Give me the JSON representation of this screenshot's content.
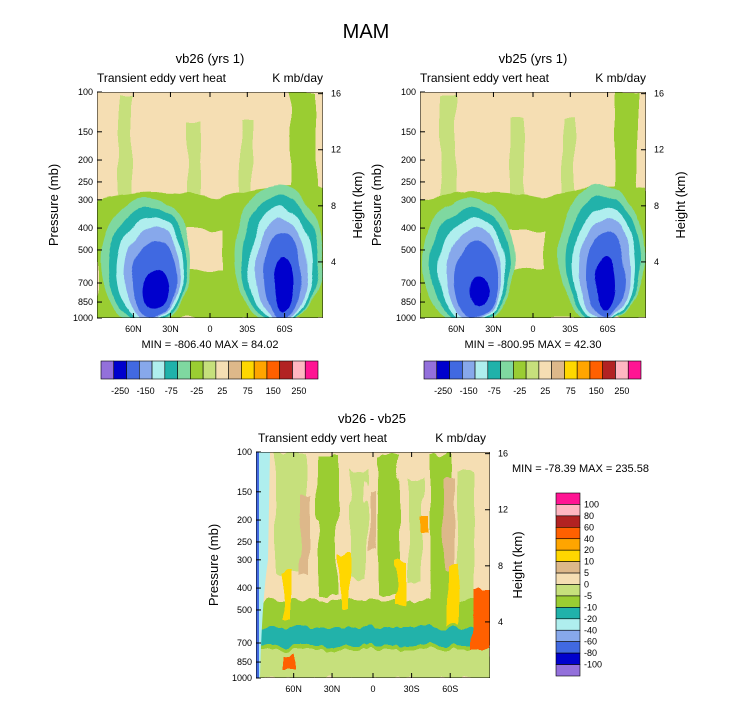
{
  "figure": {
    "title": "MAM"
  },
  "chart_data": [
    {
      "type": "heatmap",
      "title": "vb26 (yrs 1)",
      "subtitle_left": "Transient eddy vert heat",
      "subtitle_right": "K mb/day",
      "ylabel": "Pressure (mb)",
      "ylabel_right": "Height (km)",
      "x_ticks": [
        "60N",
        "30N",
        "0",
        "30S",
        "60S"
      ],
      "y_ticks": [
        "100",
        "150",
        "200",
        "250",
        "300",
        "400",
        "500",
        "700",
        "850",
        "1000"
      ],
      "y_right_ticks": [
        "16",
        "12",
        "8",
        "4"
      ],
      "stats": "MIN = -806.40   MAX = 84.02",
      "colorbar": {
        "labels": [
          "-250",
          "-150",
          "-75",
          "-25",
          "25",
          "75",
          "150",
          "250"
        ],
        "colors": [
          "#9370DB",
          "#0000CD",
          "#4169E1",
          "#87A8EB",
          "#AFEEEE",
          "#20B2AA",
          "#7FD8A0",
          "#9ACD32",
          "#C6E07C",
          "#F5DEB3",
          "#DDB88A",
          "#FFD700",
          "#FFA500",
          "#FF6000",
          "#B22222",
          "#FFB6C1",
          "#FF1493"
        ]
      }
    },
    {
      "type": "heatmap",
      "title": "vb25 (yrs 1)",
      "subtitle_left": "Transient eddy vert heat",
      "subtitle_right": "K mb/day",
      "ylabel": "Pressure (mb)",
      "ylabel_right": "Height (km)",
      "x_ticks": [
        "60N",
        "30N",
        "0",
        "30S",
        "60S"
      ],
      "y_ticks": [
        "100",
        "150",
        "200",
        "250",
        "300",
        "400",
        "500",
        "700",
        "850",
        "1000"
      ],
      "y_right_ticks": [
        "16",
        "12",
        "8",
        "4"
      ],
      "stats": "MIN = -800.95   MAX = 42.30",
      "colorbar": {
        "labels": [
          "-250",
          "-150",
          "-75",
          "-25",
          "25",
          "75",
          "150",
          "250"
        ],
        "colors": [
          "#9370DB",
          "#0000CD",
          "#4169E1",
          "#87A8EB",
          "#AFEEEE",
          "#20B2AA",
          "#7FD8A0",
          "#9ACD32",
          "#C6E07C",
          "#F5DEB3",
          "#DDB88A",
          "#FFD700",
          "#FFA500",
          "#FF6000",
          "#B22222",
          "#FFB6C1",
          "#FF1493"
        ]
      }
    },
    {
      "type": "heatmap",
      "title": "vb26 - vb25",
      "subtitle_left": "Transient eddy vert heat",
      "subtitle_right": "K mb/day",
      "ylabel": "Pressure (mb)",
      "ylabel_right": "Height (km)",
      "x_ticks": [
        "60N",
        "30N",
        "0",
        "30S",
        "60S"
      ],
      "y_ticks": [
        "100",
        "150",
        "200",
        "250",
        "300",
        "400",
        "500",
        "700",
        "850",
        "1000"
      ],
      "y_right_ticks": [
        "16",
        "12",
        "8",
        "4"
      ],
      "stats": "MIN = -78.39   MAX = 235.58",
      "colorbar": {
        "labels": [
          "100",
          "80",
          "60",
          "40",
          "20",
          "10",
          "5",
          "0",
          "-5",
          "-10",
          "-20",
          "-40",
          "-60",
          "-80",
          "-100"
        ],
        "colors": [
          "#FF1493",
          "#FFB6C1",
          "#B22222",
          "#FF6000",
          "#FFA500",
          "#FFD700",
          "#DDB88A",
          "#F5DEB3",
          "#C6E07C",
          "#9ACD32",
          "#20B2AA",
          "#AFEEEE",
          "#87A8EB",
          "#4169E1",
          "#0000CD",
          "#9370DB"
        ]
      }
    }
  ]
}
